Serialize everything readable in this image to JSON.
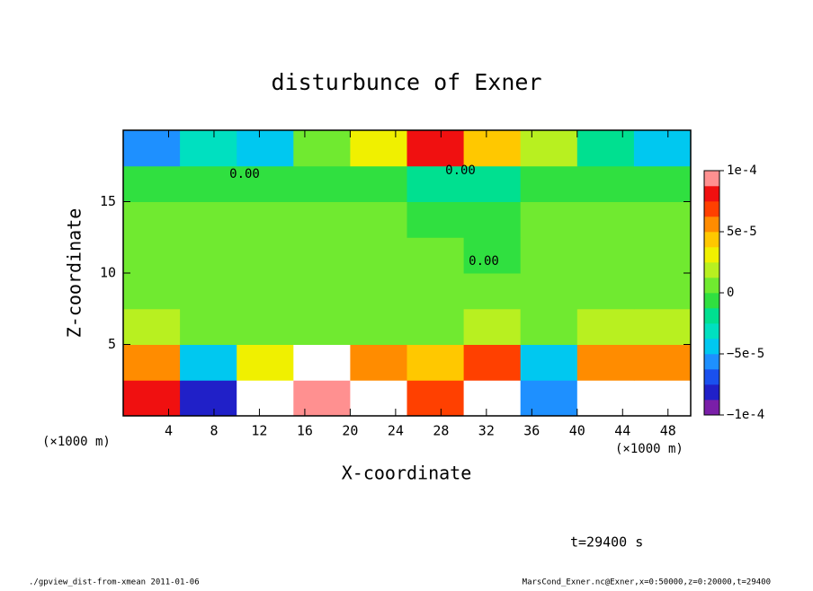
{
  "chart_data": {
    "type": "heatmap",
    "title": "disturbunce of Exner",
    "x_label": "X-coordinate",
    "y_label": "Z-coordinate",
    "x_unit": "(×1000 m)",
    "annotation": "t=29400 s",
    "footer_left": "./gpview_dist-from-xmean  2011-01-06",
    "footer_right": "MarsCond_Exner.nc@Exner,x=0:50000,z=0:20000,t=29400",
    "contour_labels": [
      "0.00",
      "0.00",
      "0.00"
    ],
    "xlim": [
      0,
      50
    ],
    "ylim": [
      0,
      20
    ],
    "xticks": [
      4,
      8,
      12,
      16,
      20,
      24,
      28,
      32,
      36,
      40,
      44,
      48
    ],
    "yticks": [
      5,
      10,
      15
    ],
    "x": [
      2.5,
      7.5,
      12.5,
      17.5,
      22.5,
      27.5,
      32.5,
      37.5,
      42.5,
      47.5
    ],
    "y": [
      1.25,
      3.75,
      6.25,
      8.75,
      11.25,
      13.75,
      16.25,
      18.75
    ],
    "z": [
      [
        8e-05,
        -8e-05,
        0.00012,
        9e-05,
        -0.00011,
        7e-05,
        0.00012,
        -6e-05,
        0.00011,
        -0.00011
      ],
      [
        5e-05,
        -4e-05,
        3e-05,
        -0.00012,
        6e-05,
        4e-05,
        7e-05,
        -5e-05,
        6e-05,
        5e-05
      ],
      [
        2e-05,
        1e-05,
        1e-05,
        1e-05,
        5e-06,
        1e-05,
        1.5e-05,
        1e-05,
        1.5e-05,
        1.5e-05
      ],
      [
        5e-06,
        5e-06,
        1e-05,
        5e-06,
        5e-06,
        5e-06,
        0,
        5e-06,
        1e-05,
        5e-06
      ],
      [
        0,
        5e-06,
        1e-05,
        5e-06,
        0,
        5e-06,
        -5e-06,
        0,
        5e-06,
        0
      ],
      [
        0,
        0,
        5e-06,
        5e-06,
        0,
        -5e-06,
        -1e-05,
        0,
        0,
        0
      ],
      [
        -1e-05,
        -5e-06,
        -5e-06,
        -5e-06,
        -1e-05,
        -2e-05,
        -1.5e-05,
        -1e-05,
        -1e-05,
        -1e-05
      ],
      [
        -6e-05,
        -3e-05,
        -5e-05,
        1e-05,
        3e-05,
        8e-05,
        4e-05,
        2e-05,
        -2e-05,
        -4e-05
      ]
    ],
    "zlim": [
      -0.0001,
      0.0001
    ],
    "zticks": [
      {
        "value": -0.0001,
        "label": "−1e-4"
      },
      {
        "value": -5e-05,
        "label": "−5e-5"
      },
      0,
      {
        "value": 5e-05,
        "label": "5e-5"
      },
      {
        "value": 0.0001,
        "label": "1e-4"
      }
    ],
    "colors": [
      "#7a1fa8",
      "#2020c8",
      "#1a50ee",
      "#1e90ff",
      "#00c8f0",
      "#00e0c0",
      "#00e090",
      "#30e040",
      "#70ea30",
      "#b8f020",
      "#f0f000",
      "#ffc800",
      "#ff8c00",
      "#ff4000",
      "#f01010",
      "#ff9090"
    ],
    "out_of_range_color": "#ffffff"
  }
}
